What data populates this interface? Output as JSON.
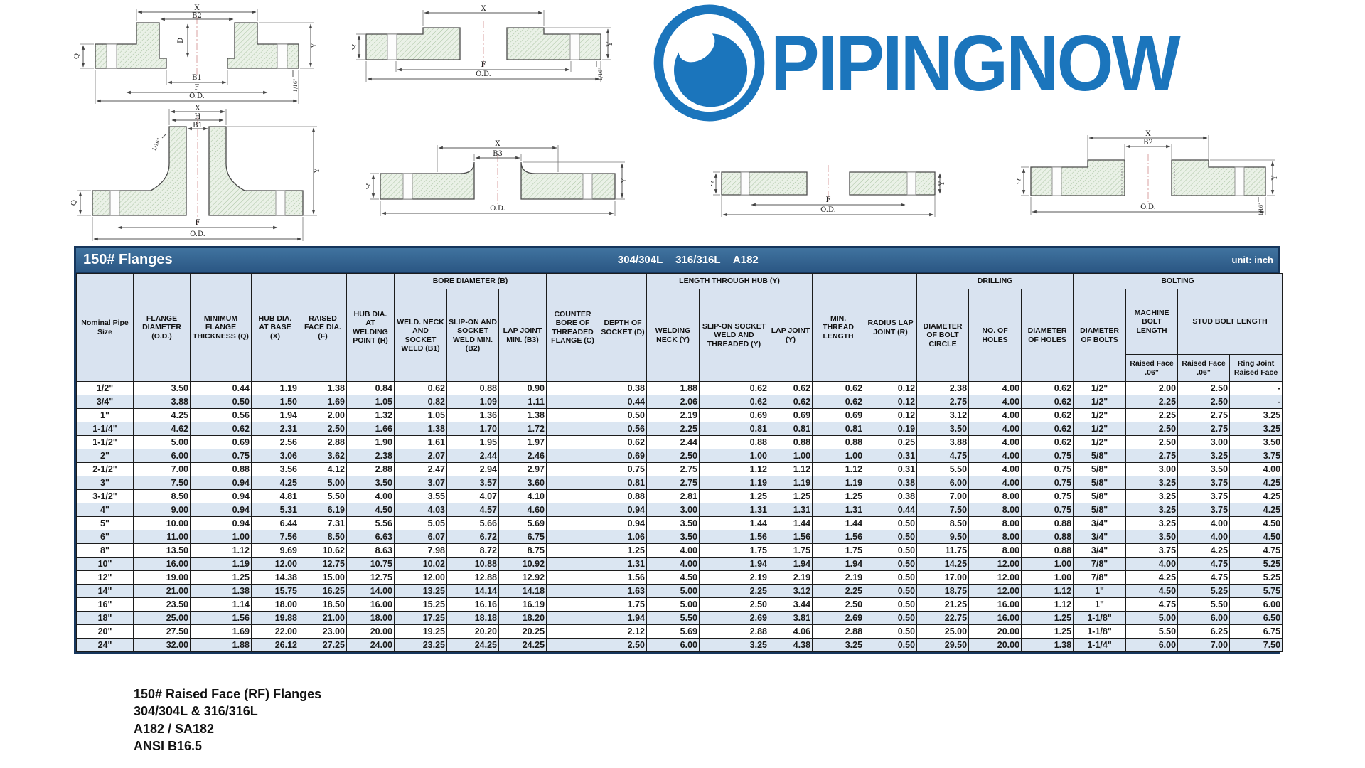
{
  "colors": {
    "logo_blue": "#1b75bc",
    "titlebar_blue": "#2e5c8c",
    "header_bg": "#d9e3f0",
    "row_alt_bg": "#dbe6f2",
    "hatch_green": "#a9c3a1"
  },
  "logo": {
    "text": "PIPINGNOW"
  },
  "table": {
    "title": "150# Flanges",
    "subtitle": "304/304L 316/316L A182",
    "unit": "unit: inch",
    "h": {
      "c0": "Nominal Pipe Size",
      "c1": "FLANGE DIAMETER (O.D.)",
      "c2": "MINIMUM FLANGE THICKNESS (Q)",
      "c3": "HUB DIA. AT BASE (X)",
      "c4": "RAISED FACE DIA. (F)",
      "c5": "HUB DIA. AT WELDING POINT (H)",
      "g_bore": "BORE DIAMETER (B)",
      "b1": "WELD. NECK AND SOCKET WELD (B1)",
      "b2": "SLIP-ON AND SOCKET WELD MIN. (B2)",
      "b3": "LAP JOINT MIN. (B3)",
      "c": "COUNTER BORE OF THREADED FLANGE (C)",
      "d": "DEPTH OF SOCKET (D)",
      "g_hub": "LENGTH THROUGH HUB (Y)",
      "y1": "WELDING NECK (Y)",
      "y2": "SLIP-ON SOCKET WELD AND THREADED (Y)",
      "y3": "LAP JOINT (Y)",
      "thr": "MIN. THREAD LENGTH",
      "r": "RADIUS LAP JOINT (R)",
      "g_drill": "DRILLING",
      "bc": "DIAMETER OF BOLT CIRCLE",
      "nh": "NO. OF HOLES",
      "dh": "DIAMETER OF HOLES",
      "g_bolt": "BOLTING",
      "db": "DIAMETER OF BOLTS",
      "mbl": "MACHINE BOLT LENGTH",
      "sbl": "STUD BOLT LENGTH",
      "rf1": "Raised Face .06\"",
      "rf2": "Raised Face .06\"",
      "rj": "Ring Joint Raised Face"
    },
    "rows": [
      [
        "1/2\"",
        "3.50",
        "0.44",
        "1.19",
        "1.38",
        "0.84",
        "0.62",
        "0.88",
        "0.90",
        "",
        "0.38",
        "1.88",
        "0.62",
        "0.62",
        "0.62",
        "0.12",
        "2.38",
        "4.00",
        "0.62",
        "1/2\"",
        "2.00",
        "2.50",
        "-"
      ],
      [
        "3/4\"",
        "3.88",
        "0.50",
        "1.50",
        "1.69",
        "1.05",
        "0.82",
        "1.09",
        "1.11",
        "",
        "0.44",
        "2.06",
        "0.62",
        "0.62",
        "0.62",
        "0.12",
        "2.75",
        "4.00",
        "0.62",
        "1/2\"",
        "2.25",
        "2.50",
        "-"
      ],
      [
        "1\"",
        "4.25",
        "0.56",
        "1.94",
        "2.00",
        "1.32",
        "1.05",
        "1.36",
        "1.38",
        "",
        "0.50",
        "2.19",
        "0.69",
        "0.69",
        "0.69",
        "0.12",
        "3.12",
        "4.00",
        "0.62",
        "1/2\"",
        "2.25",
        "2.75",
        "3.25"
      ],
      [
        "1-1/4\"",
        "4.62",
        "0.62",
        "2.31",
        "2.50",
        "1.66",
        "1.38",
        "1.70",
        "1.72",
        "",
        "0.56",
        "2.25",
        "0.81",
        "0.81",
        "0.81",
        "0.19",
        "3.50",
        "4.00",
        "0.62",
        "1/2\"",
        "2.50",
        "2.75",
        "3.25"
      ],
      [
        "1-1/2\"",
        "5.00",
        "0.69",
        "2.56",
        "2.88",
        "1.90",
        "1.61",
        "1.95",
        "1.97",
        "",
        "0.62",
        "2.44",
        "0.88",
        "0.88",
        "0.88",
        "0.25",
        "3.88",
        "4.00",
        "0.62",
        "1/2\"",
        "2.50",
        "3.00",
        "3.50"
      ],
      [
        "2\"",
        "6.00",
        "0.75",
        "3.06",
        "3.62",
        "2.38",
        "2.07",
        "2.44",
        "2.46",
        "",
        "0.69",
        "2.50",
        "1.00",
        "1.00",
        "1.00",
        "0.31",
        "4.75",
        "4.00",
        "0.75",
        "5/8\"",
        "2.75",
        "3.25",
        "3.75"
      ],
      [
        "2-1/2\"",
        "7.00",
        "0.88",
        "3.56",
        "4.12",
        "2.88",
        "2.47",
        "2.94",
        "2.97",
        "",
        "0.75",
        "2.75",
        "1.12",
        "1.12",
        "1.12",
        "0.31",
        "5.50",
        "4.00",
        "0.75",
        "5/8\"",
        "3.00",
        "3.50",
        "4.00"
      ],
      [
        "3\"",
        "7.50",
        "0.94",
        "4.25",
        "5.00",
        "3.50",
        "3.07",
        "3.57",
        "3.60",
        "",
        "0.81",
        "2.75",
        "1.19",
        "1.19",
        "1.19",
        "0.38",
        "6.00",
        "4.00",
        "0.75",
        "5/8\"",
        "3.25",
        "3.75",
        "4.25"
      ],
      [
        "3-1/2\"",
        "8.50",
        "0.94",
        "4.81",
        "5.50",
        "4.00",
        "3.55",
        "4.07",
        "4.10",
        "",
        "0.88",
        "2.81",
        "1.25",
        "1.25",
        "1.25",
        "0.38",
        "7.00",
        "8.00",
        "0.75",
        "5/8\"",
        "3.25",
        "3.75",
        "4.25"
      ],
      [
        "4\"",
        "9.00",
        "0.94",
        "5.31",
        "6.19",
        "4.50",
        "4.03",
        "4.57",
        "4.60",
        "",
        "0.94",
        "3.00",
        "1.31",
        "1.31",
        "1.31",
        "0.44",
        "7.50",
        "8.00",
        "0.75",
        "5/8\"",
        "3.25",
        "3.75",
        "4.25"
      ],
      [
        "5\"",
        "10.00",
        "0.94",
        "6.44",
        "7.31",
        "5.56",
        "5.05",
        "5.66",
        "5.69",
        "",
        "0.94",
        "3.50",
        "1.44",
        "1.44",
        "1.44",
        "0.50",
        "8.50",
        "8.00",
        "0.88",
        "3/4\"",
        "3.25",
        "4.00",
        "4.50"
      ],
      [
        "6\"",
        "11.00",
        "1.00",
        "7.56",
        "8.50",
        "6.63",
        "6.07",
        "6.72",
        "6.75",
        "",
        "1.06",
        "3.50",
        "1.56",
        "1.56",
        "1.56",
        "0.50",
        "9.50",
        "8.00",
        "0.88",
        "3/4\"",
        "3.50",
        "4.00",
        "4.50"
      ],
      [
        "8\"",
        "13.50",
        "1.12",
        "9.69",
        "10.62",
        "8.63",
        "7.98",
        "8.72",
        "8.75",
        "",
        "1.25",
        "4.00",
        "1.75",
        "1.75",
        "1.75",
        "0.50",
        "11.75",
        "8.00",
        "0.88",
        "3/4\"",
        "3.75",
        "4.25",
        "4.75"
      ],
      [
        "10\"",
        "16.00",
        "1.19",
        "12.00",
        "12.75",
        "10.75",
        "10.02",
        "10.88",
        "10.92",
        "",
        "1.31",
        "4.00",
        "1.94",
        "1.94",
        "1.94",
        "0.50",
        "14.25",
        "12.00",
        "1.00",
        "7/8\"",
        "4.00",
        "4.75",
        "5.25"
      ],
      [
        "12\"",
        "19.00",
        "1.25",
        "14.38",
        "15.00",
        "12.75",
        "12.00",
        "12.88",
        "12.92",
        "",
        "1.56",
        "4.50",
        "2.19",
        "2.19",
        "2.19",
        "0.50",
        "17.00",
        "12.00",
        "1.00",
        "7/8\"",
        "4.25",
        "4.75",
        "5.25"
      ],
      [
        "14\"",
        "21.00",
        "1.38",
        "15.75",
        "16.25",
        "14.00",
        "13.25",
        "14.14",
        "14.18",
        "",
        "1.63",
        "5.00",
        "2.25",
        "3.12",
        "2.25",
        "0.50",
        "18.75",
        "12.00",
        "1.12",
        "1\"",
        "4.50",
        "5.25",
        "5.75"
      ],
      [
        "16\"",
        "23.50",
        "1.14",
        "18.00",
        "18.50",
        "16.00",
        "15.25",
        "16.16",
        "16.19",
        "",
        "1.75",
        "5.00",
        "2.50",
        "3.44",
        "2.50",
        "0.50",
        "21.25",
        "16.00",
        "1.12",
        "1\"",
        "4.75",
        "5.50",
        "6.00"
      ],
      [
        "18\"",
        "25.00",
        "1.56",
        "19.88",
        "21.00",
        "18.00",
        "17.25",
        "18.18",
        "18.20",
        "",
        "1.94",
        "5.50",
        "2.69",
        "3.81",
        "2.69",
        "0.50",
        "22.75",
        "16.00",
        "1.25",
        "1-1/8\"",
        "5.00",
        "6.00",
        "6.50"
      ],
      [
        "20\"",
        "27.50",
        "1.69",
        "22.00",
        "23.00",
        "20.00",
        "19.25",
        "20.20",
        "20.25",
        "",
        "2.12",
        "5.69",
        "2.88",
        "4.06",
        "2.88",
        "0.50",
        "25.00",
        "20.00",
        "1.25",
        "1-1/8\"",
        "5.50",
        "6.25",
        "6.75"
      ],
      [
        "24\"",
        "32.00",
        "1.88",
        "26.12",
        "27.25",
        "24.00",
        "23.25",
        "24.25",
        "24.25",
        "",
        "2.50",
        "6.00",
        "3.25",
        "4.38",
        "3.25",
        "0.50",
        "29.50",
        "20.00",
        "1.38",
        "1-1/4\"",
        "6.00",
        "7.00",
        "7.50"
      ]
    ]
  },
  "footer": {
    "lines": [
      "150# Raised Face (RF) Flanges",
      "304/304L & 316/316L",
      "A182 / SA182",
      "ANSI B16.5"
    ]
  },
  "diagrams": [
    {
      "labels": {
        "x": "X",
        "b2": "B2",
        "d": "D",
        "b1": "B1",
        "f": "F",
        "od": "O.D.",
        "q": "Q",
        "y": "Y",
        "s": "1/16\""
      }
    },
    {
      "labels": {
        "x": "X",
        "f": "F",
        "od": "O.D.",
        "q": "Q",
        "y": "Y",
        "s": "1/16\""
      }
    },
    {
      "labels": {
        "x": "X",
        "h": "H",
        "b1": "B1",
        "q": "Q",
        "f": "F",
        "od": "O.D.",
        "y": "Y",
        "s": "1/16\""
      }
    },
    {
      "labels": {
        "x": "X",
        "b3": "B3",
        "od": "O.D.",
        "q": "Q",
        "y": "Y"
      }
    },
    {
      "labels": {
        "q": "Q",
        "f": "F",
        "od": "O.D.",
        "y": "Y"
      }
    },
    {
      "labels": {
        "x": "X",
        "b2": "B2",
        "od": "O.D.",
        "q": "Q",
        "y": "Y",
        "s": "1/16\""
      }
    }
  ]
}
